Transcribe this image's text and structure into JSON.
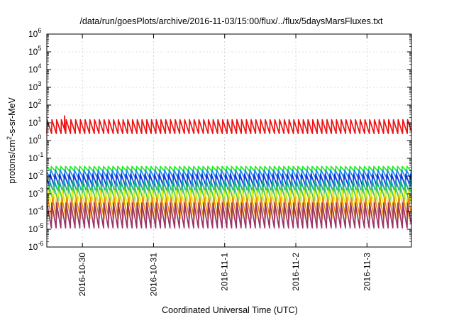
{
  "chart_data": {
    "type": "line",
    "title": "/data/run/goesPlots/archive/2016-11-03/15:00/flux/../flux/5daysMarsFluxes.txt",
    "xlabel": "Coordinated Universal Time (UTC)",
    "ylabel": "protons/cm²-s-sr-MeV",
    "ylabel_main": "protons/cm",
    "ylabel_sup": "2",
    "ylabel_rest": "-s-sr-MeV",
    "yscale": "log",
    "ylim": [
      1e-06,
      1000000.0
    ],
    "xlim": [
      "2016-10-29 12:00",
      "2016-11-03 15:00"
    ],
    "grid": true,
    "legend": "none",
    "y_ticks": [
      {
        "value": 1e-06,
        "base": "10",
        "exp": "-6"
      },
      {
        "value": 1e-05,
        "base": "10",
        "exp": "-5"
      },
      {
        "value": 0.0001,
        "base": "10",
        "exp": "-4"
      },
      {
        "value": 0.001,
        "base": "10",
        "exp": "-3"
      },
      {
        "value": 0.01,
        "base": "10",
        "exp": "-2"
      },
      {
        "value": 0.1,
        "base": "10",
        "exp": "-1"
      },
      {
        "value": 1,
        "base": "10",
        "exp": "0"
      },
      {
        "value": 10,
        "base": "10",
        "exp": "1"
      },
      {
        "value": 100,
        "base": "10",
        "exp": "2"
      },
      {
        "value": 1000,
        "base": "10",
        "exp": "3"
      },
      {
        "value": 10000,
        "base": "10",
        "exp": "4"
      },
      {
        "value": 100000,
        "base": "10",
        "exp": "5"
      },
      {
        "value": 1000000,
        "base": "10",
        "exp": "6"
      }
    ],
    "x_ticks": [
      {
        "value": "2016-10-30",
        "label": "2016-10-30"
      },
      {
        "value": "2016-10-31",
        "label": "2016-10-31"
      },
      {
        "value": "2016-11-01",
        "label": "2016-11-1"
      },
      {
        "value": "2016-11-02",
        "label": "2016-11-2"
      },
      {
        "value": "2016-11-03",
        "label": "2016-11-3"
      }
    ],
    "series": [
      {
        "color": "#ee1111",
        "low": 2.5,
        "high": 15,
        "period_hours": 1.6,
        "peak": {
          "at": "2016-10-29 18:00",
          "value": 25
        }
      },
      {
        "color": "#22ee22",
        "low": 0.018,
        "high": 0.035,
        "period_hours": 1.6
      },
      {
        "color": "#2288ee",
        "low": 0.007,
        "high": 0.022,
        "period_hours": 1.6
      },
      {
        "color": "#1133dd",
        "low": 0.0025,
        "high": 0.013,
        "period_hours": 1.6
      },
      {
        "color": "#11aaaa",
        "low": 0.001,
        "high": 0.006,
        "period_hours": 1.6
      },
      {
        "color": "#44cc44",
        "low": 0.0004,
        "high": 0.003,
        "period_hours": 1.6
      },
      {
        "color": "#eeee22",
        "low": 0.00012,
        "high": 0.0015,
        "period_hours": 1.6
      },
      {
        "color": "#ee8811",
        "low": 4e-05,
        "high": 0.0006,
        "period_hours": 1.6
      },
      {
        "color": "#993366",
        "low": 1.2e-05,
        "high": 0.0003,
        "period_hours": 1.6
      }
    ]
  }
}
